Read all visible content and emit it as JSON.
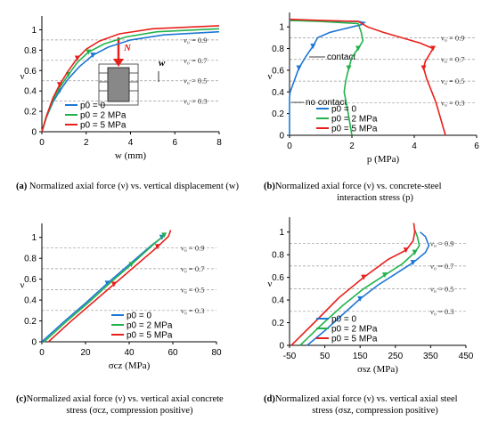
{
  "colors": {
    "p0_0": "#1f77d4",
    "p0_2": "#22b24c",
    "p0_5": "#e8201c",
    "grid": "#9a9a9a",
    "arrow": "#e8201c"
  },
  "chart_data": [
    {
      "type": "line",
      "panel": "a",
      "xlabel": "w (mm)",
      "ylabel": "ν",
      "xlim": [
        0,
        8
      ],
      "ylim": [
        0,
        1.1
      ],
      "xticks": [
        "0",
        "2",
        "4",
        "6",
        "8"
      ],
      "yticks": [
        "0",
        "0.2",
        "0.4",
        "0.6",
        "0.8",
        "1"
      ],
      "ref_levels": [
        {
          "y": 0.9,
          "label": "ν₀ = 0.9"
        },
        {
          "y": 0.7,
          "label": "ν₀ = 0.7"
        },
        {
          "y": 0.5,
          "label": "ν₀ = 0.5"
        },
        {
          "y": 0.3,
          "label": "ν₀ = 0.3"
        }
      ],
      "annotations": {
        "load": "N",
        "disp": "w"
      },
      "series": [
        {
          "name": "p0 = 0",
          "x": [
            0,
            0.2,
            0.5,
            0.8,
            1.2,
            1.7,
            2.3,
            3.0,
            4.0,
            5.5,
            8.0
          ],
          "y": [
            0,
            0.14,
            0.29,
            0.4,
            0.52,
            0.64,
            0.75,
            0.83,
            0.9,
            0.95,
            0.98
          ]
        },
        {
          "name": "p0 = 2 MPa",
          "x": [
            0,
            0.2,
            0.5,
            0.8,
            1.2,
            1.6,
            2.1,
            2.8,
            3.8,
            5.2,
            8.0
          ],
          "y": [
            0,
            0.14,
            0.31,
            0.43,
            0.56,
            0.68,
            0.78,
            0.86,
            0.93,
            0.98,
            1.01
          ]
        },
        {
          "name": "p0 = 5 MPa",
          "x": [
            0,
            0.2,
            0.5,
            0.8,
            1.2,
            1.6,
            2.0,
            2.6,
            3.5,
            5.0,
            8.0
          ],
          "y": [
            0,
            0.15,
            0.33,
            0.46,
            0.6,
            0.72,
            0.81,
            0.89,
            0.96,
            1.01,
            1.04
          ]
        }
      ],
      "legend": [
        "p0 = 0",
        "p0 = 2 MPa",
        "p0 = 5 MPa"
      ],
      "caption": {
        "label": "(a)",
        "text": " Normalized axial force (ν) vs. vertical displacement (w)"
      }
    },
    {
      "type": "line",
      "panel": "b",
      "xlabel": "p (MPa)",
      "ylabel": "ν",
      "xlim": [
        0,
        6
      ],
      "ylim": [
        0,
        1.1
      ],
      "xticks": [
        "0",
        "2",
        "4",
        "6"
      ],
      "yticks": [
        "0",
        "0.2",
        "0.4",
        "0.6",
        "0.8",
        "1"
      ],
      "ref_levels": [
        {
          "y": 0.9,
          "label": "ν₀ = 0.9"
        },
        {
          "y": 0.7,
          "label": "ν₀ = 0.7"
        },
        {
          "y": 0.5,
          "label": "ν₀ = 0.5"
        },
        {
          "y": 0.3,
          "label": "ν₀ = 0.3"
        }
      ],
      "annotations": {
        "contact": "contact",
        "no_contact": "no contact"
      },
      "series": [
        {
          "name": "p0 = 0",
          "x": [
            0,
            0,
            0.02,
            0.3,
            0.55,
            0.7,
            0.75,
            0.9,
            1.3,
            2.3,
            2.4,
            2.2,
            0,
            0
          ],
          "y": [
            0,
            0.35,
            0.4,
            0.62,
            0.74,
            0.8,
            0.82,
            0.9,
            0.95,
            1.02,
            1.04,
            1.05,
            1.06,
            1.07
          ]
        },
        {
          "name": "p0 = 2 MPa",
          "x": [
            2,
            1.85,
            1.75,
            1.8,
            1.9,
            2.0,
            2.2,
            2.35,
            2.3,
            2.2,
            1.0,
            0
          ],
          "y": [
            0,
            0.25,
            0.4,
            0.5,
            0.62,
            0.72,
            0.8,
            0.87,
            0.95,
            1.03,
            1.05,
            1.06
          ]
        },
        {
          "name": "p0 = 5 MPa",
          "x": [
            5,
            4.7,
            4.4,
            4.3,
            4.35,
            4.6,
            4.2,
            3.6,
            3.0,
            2.5,
            2.2,
            1.0,
            0
          ],
          "y": [
            0,
            0.3,
            0.52,
            0.62,
            0.68,
            0.8,
            0.85,
            0.9,
            0.95,
            1.0,
            1.05,
            1.06,
            1.07
          ]
        }
      ],
      "legend": [
        "p0 = 0",
        "p0 = 2 MPa",
        "p0 = 5 MPa"
      ],
      "caption": {
        "label": "(b)",
        "text": " Normalized axial force (ν) vs. concrete-steel interaction stress (p)"
      }
    },
    {
      "type": "line",
      "panel": "c",
      "xlabel": "σcz (MPa)",
      "ylabel": "ν",
      "xlim": [
        0,
        80
      ],
      "ylim": [
        0,
        1.1
      ],
      "xticks": [
        "0",
        "20",
        "40",
        "60",
        "80"
      ],
      "yticks": [
        "0",
        "0.2",
        "0.4",
        "0.6",
        "0.8",
        "1"
      ],
      "ref_levels": [
        {
          "y": 0.9,
          "label": "ν₀ = 0.9"
        },
        {
          "y": 0.7,
          "label": "ν₀ = 0.7"
        },
        {
          "y": 0.5,
          "label": "ν₀ = 0.5"
        },
        {
          "y": 0.3,
          "label": "ν₀ = 0.3"
        }
      ],
      "series": [
        {
          "name": "p0 = 0",
          "x": [
            0,
            10,
            20,
            30,
            40,
            50,
            55
          ],
          "y": [
            0,
            0.19,
            0.37,
            0.56,
            0.74,
            0.92,
            1.0
          ]
        },
        {
          "name": "p0 = 2 MPa",
          "x": [
            1,
            11,
            21,
            31,
            41,
            51,
            56
          ],
          "y": [
            0,
            0.19,
            0.37,
            0.56,
            0.74,
            0.93,
            1.02
          ]
        },
        {
          "name": "p0 = 5 MPa",
          "x": [
            3,
            13,
            23,
            33,
            43,
            53,
            58,
            59
          ],
          "y": [
            0,
            0.19,
            0.37,
            0.55,
            0.73,
            0.91,
            1.01,
            1.07
          ]
        }
      ],
      "legend": [
        "p0 = 0",
        "p0 = 2 MPa",
        "p0 = 5 MPa"
      ],
      "caption": {
        "label": "(c)",
        "text": " Normalized axial force (ν) vs. vertical axial concrete stress (σcz, compression positive)"
      }
    },
    {
      "type": "line",
      "panel": "d",
      "xlabel": "σsz (MPa)",
      "ylabel": "ν",
      "xlim": [
        -50,
        450
      ],
      "ylim": [
        0,
        1.1
      ],
      "xticks": [
        "-50",
        "50",
        "150",
        "250",
        "350",
        "450"
      ],
      "yticks": [
        "0",
        "0.2",
        "0.4",
        "0.6",
        "0.8",
        "1"
      ],
      "ref_levels": [
        {
          "y": 0.9,
          "label": "ν₀ = 0.9"
        },
        {
          "y": 0.7,
          "label": "ν₀ = 0.7"
        },
        {
          "y": 0.5,
          "label": "ν₀ = 0.5"
        },
        {
          "y": 0.3,
          "label": "ν₀ = 0.3"
        }
      ],
      "series": [
        {
          "name": "p0 = 0",
          "x": [
            0,
            50,
            100,
            150,
            200,
            250,
            300,
            335,
            345,
            335,
            320
          ],
          "y": [
            0,
            0.13,
            0.27,
            0.41,
            0.53,
            0.63,
            0.73,
            0.82,
            0.88,
            0.96,
            1.0
          ]
        },
        {
          "name": "p0 = 2 MPa",
          "x": [
            -20,
            40,
            100,
            160,
            220,
            270,
            305,
            318,
            312,
            305
          ],
          "y": [
            0,
            0.18,
            0.35,
            0.5,
            0.62,
            0.72,
            0.82,
            0.88,
            0.96,
            1.02
          ]
        },
        {
          "name": "p0 = 5 MPa",
          "x": [
            -45,
            20,
            90,
            160,
            230,
            280,
            300,
            305,
            302
          ],
          "y": [
            0,
            0.2,
            0.42,
            0.6,
            0.76,
            0.84,
            0.92,
            1.0,
            1.08
          ]
        }
      ],
      "legend": [
        "p0 = 0",
        "p0 = 2 MPa",
        "p0 = 5 MPa"
      ],
      "caption": {
        "label": "(d)",
        "text": " Normalized axial force (ν) vs. vertical axial steel stress (σsz, compression positive)"
      }
    }
  ]
}
